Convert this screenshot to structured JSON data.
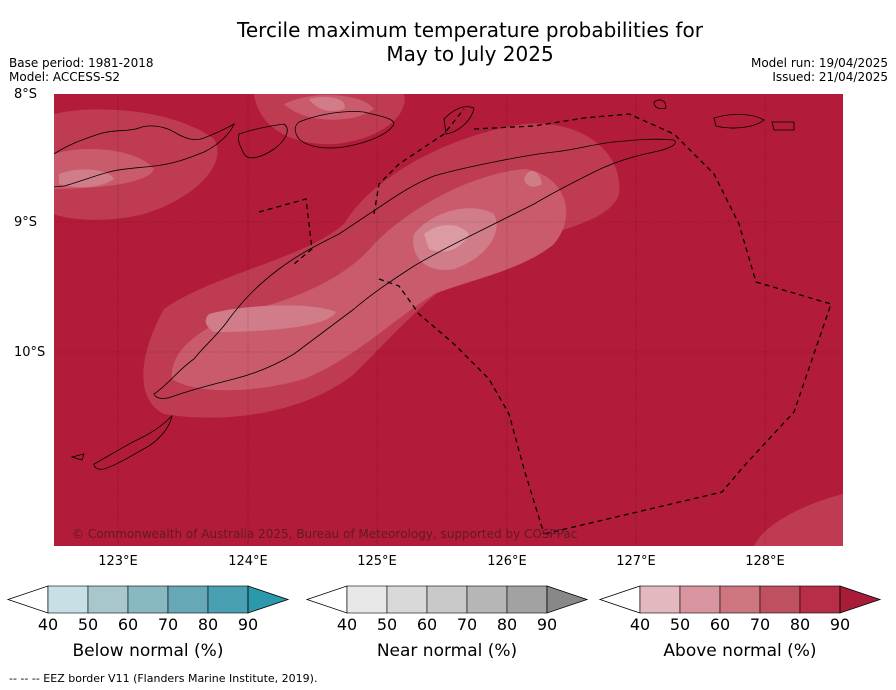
{
  "title_line1": "Tercile maximum temperature probabilities for",
  "title_line2": "May to July 2025",
  "meta_left": [
    "Base period: 1981-2018",
    "Model: ACCESS-S2"
  ],
  "meta_right": [
    "Model run: 19/04/2025",
    "Issued: 21/04/2025"
  ],
  "map": {
    "lat_labels": [
      "8°S",
      "9°S",
      "10°S"
    ],
    "lon_labels": [
      "123°E",
      "124°E",
      "125°E",
      "126°E",
      "127°E",
      "128°E"
    ],
    "copyright": "© Commonwealth of Australia 2025, Bureau of Meteorology, supported by COSPPac"
  },
  "colorbars": [
    {
      "label": "Below normal (%)",
      "ticks": [
        "40",
        "50",
        "60",
        "70",
        "80",
        "90"
      ],
      "colors": [
        "#ffffff",
        "#c6e0e6",
        "#a7c7cd",
        "#88b8c2",
        "#67a8b6",
        "#48a0b2",
        "#2b98ab"
      ]
    },
    {
      "label": "Near normal (%)",
      "ticks": [
        "40",
        "50",
        "60",
        "70",
        "80",
        "90"
      ],
      "colors": [
        "#ffffff",
        "#e8e8e8",
        "#d9d9d9",
        "#c9c9c9",
        "#b6b6b6",
        "#a2a2a2",
        "#888888"
      ]
    },
    {
      "label": "Above normal (%)",
      "ticks": [
        "40",
        "50",
        "60",
        "70",
        "80",
        "90"
      ],
      "colors": [
        "#ffffff",
        "#e3b8be",
        "#d9959f",
        "#cd7680",
        "#bf5060",
        "#b82d48",
        "#a81c38"
      ]
    }
  ],
  "footnote": "--  --  -- EEZ border V11 (Flanders Marine Institute, 2019)."
}
